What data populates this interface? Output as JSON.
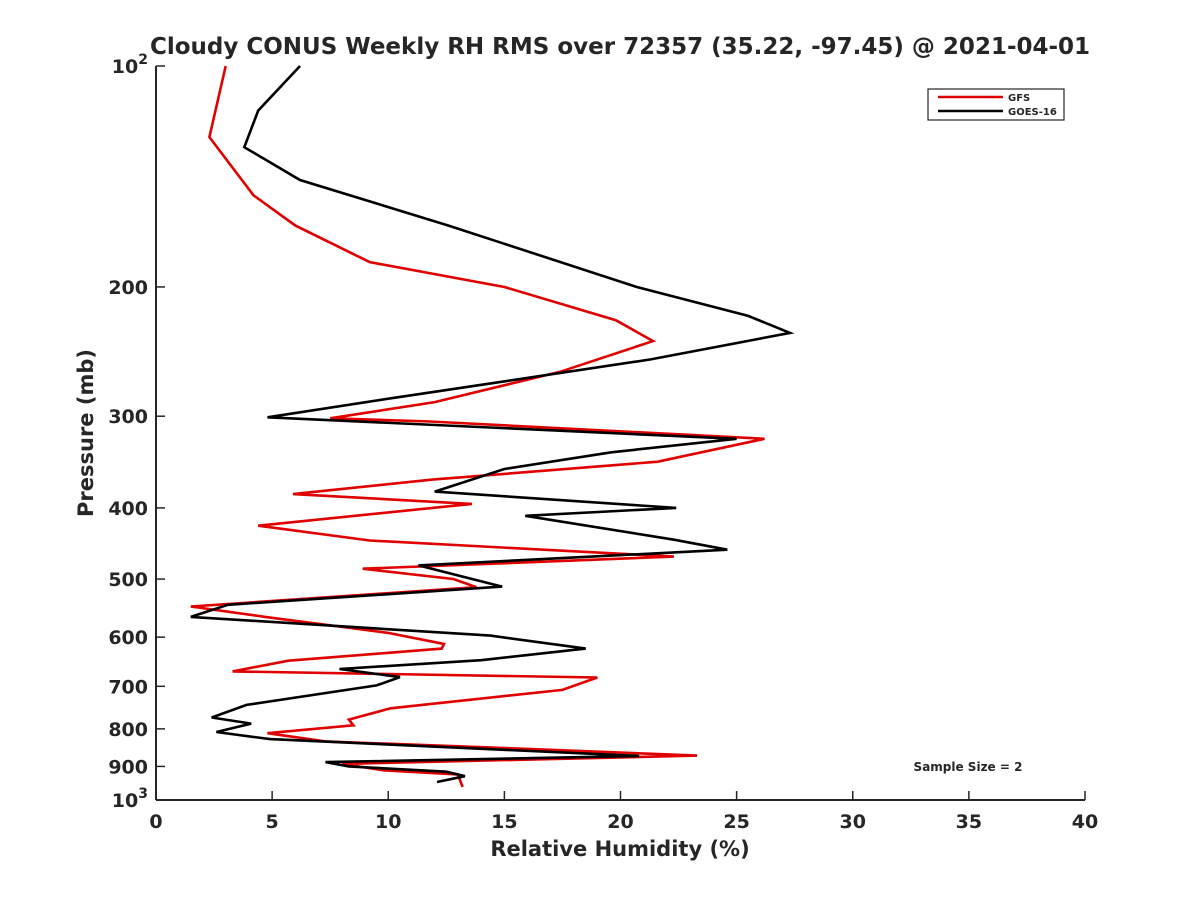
{
  "chart_data": {
    "type": "line",
    "title": "Cloudy CONUS Weekly RH RMS over 72357 (35.22, -97.45) @ 2021-04-01",
    "xlabel": "Relative Humidity (%)",
    "ylabel": "Pressure (mb)",
    "xlim": [
      0,
      40
    ],
    "ylim": [
      100,
      1000
    ],
    "y_scale": "log",
    "y_reversed": true,
    "x_ticks": [
      "0",
      "5",
      "10",
      "15",
      "20",
      "25",
      "30",
      "35",
      "40"
    ],
    "y_ticks": [
      {
        "value": 100,
        "base": "10",
        "exp": "2"
      },
      {
        "value": 200,
        "label": "200"
      },
      {
        "value": 300,
        "label": "300"
      },
      {
        "value": 400,
        "label": "400"
      },
      {
        "value": 500,
        "label": "500"
      },
      {
        "value": 600,
        "label": "600"
      },
      {
        "value": 700,
        "label": "700"
      },
      {
        "value": 800,
        "label": "800"
      },
      {
        "value": 900,
        "label": "900"
      },
      {
        "value": 1000,
        "base": "10",
        "exp": "3"
      }
    ],
    "legend_position": "top-right",
    "annotation": "Sample Size = 2",
    "series": [
      {
        "name": "GFS",
        "color": "#e00000",
        "points": [
          [
            3.0,
            100
          ],
          [
            2.3,
            125
          ],
          [
            4.2,
            150
          ],
          [
            6.0,
            165
          ],
          [
            9.2,
            185
          ],
          [
            15.0,
            200
          ],
          [
            19.8,
            222
          ],
          [
            21.4,
            237
          ],
          [
            17.4,
            261
          ],
          [
            12.0,
            287
          ],
          [
            7.5,
            302
          ],
          [
            11.8,
            305
          ],
          [
            26.2,
            322
          ],
          [
            21.6,
            346
          ],
          [
            11.9,
            366
          ],
          [
            5.9,
            383
          ],
          [
            13.6,
            395
          ],
          [
            4.4,
            423
          ],
          [
            9.2,
            443
          ],
          [
            22.3,
            466
          ],
          [
            8.9,
            484
          ],
          [
            12.8,
            500
          ],
          [
            13.8,
            513
          ],
          [
            1.5,
            545
          ],
          [
            4.7,
            563
          ],
          [
            10.0,
            592
          ],
          [
            12.4,
            613
          ],
          [
            12.3,
            622
          ],
          [
            5.7,
            646
          ],
          [
            3.3,
            668
          ],
          [
            19.0,
            681
          ],
          [
            17.5,
            708
          ],
          [
            10.1,
            750
          ],
          [
            8.3,
            777
          ],
          [
            8.5,
            791
          ],
          [
            4.8,
            811
          ],
          [
            7.3,
            832
          ],
          [
            16.0,
            852
          ],
          [
            23.3,
            870
          ],
          [
            20.0,
            875
          ],
          [
            8.0,
            893
          ],
          [
            9.8,
            911
          ],
          [
            13.0,
            923
          ],
          [
            13.2,
            960
          ]
        ]
      },
      {
        "name": "GOES-16",
        "color": "#000000",
        "points": [
          [
            6.2,
            100
          ],
          [
            4.4,
            115
          ],
          [
            3.8,
            129
          ],
          [
            6.2,
            143
          ],
          [
            12.6,
            165
          ],
          [
            20.7,
            200
          ],
          [
            25.5,
            219
          ],
          [
            27.3,
            231
          ],
          [
            21.3,
            251
          ],
          [
            14.3,
            271
          ],
          [
            10.0,
            284
          ],
          [
            4.8,
            301
          ],
          [
            25.0,
            322
          ],
          [
            19.6,
            336
          ],
          [
            15.0,
            354
          ],
          [
            12.0,
            380
          ],
          [
            22.4,
            400
          ],
          [
            15.9,
            410
          ],
          [
            22.3,
            442
          ],
          [
            24.6,
            456
          ],
          [
            11.3,
            479
          ],
          [
            14.9,
            512
          ],
          [
            3.1,
            542
          ],
          [
            1.5,
            563
          ],
          [
            14.4,
            597
          ],
          [
            18.5,
            622
          ],
          [
            14.0,
            645
          ],
          [
            7.9,
            663
          ],
          [
            10.5,
            680
          ],
          [
            9.5,
            698
          ],
          [
            3.9,
            742
          ],
          [
            2.4,
            772
          ],
          [
            4.1,
            787
          ],
          [
            2.6,
            808
          ],
          [
            4.9,
            826
          ],
          [
            20.8,
            871
          ],
          [
            7.3,
            888
          ],
          [
            8.3,
            900
          ],
          [
            12.5,
            915
          ],
          [
            13.3,
            928
          ],
          [
            12.1,
            945
          ]
        ]
      }
    ]
  }
}
